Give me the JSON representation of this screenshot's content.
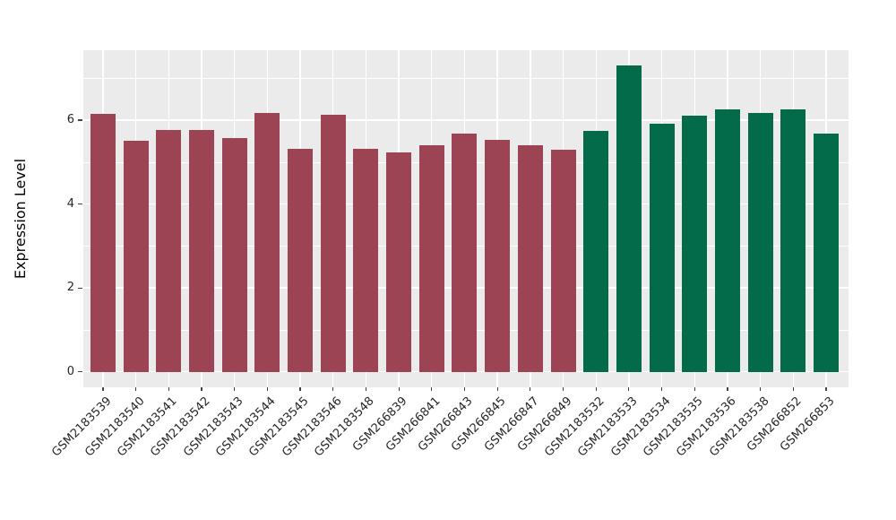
{
  "chart_data": {
    "type": "bar",
    "title": "",
    "xlabel": "",
    "ylabel": "Expression Level",
    "categories": [
      "GSM2183539",
      "GSM2183540",
      "GSM2183541",
      "GSM2183542",
      "GSM2183543",
      "GSM2183544",
      "GSM2183545",
      "GSM2183546",
      "GSM2183548",
      "GSM266839",
      "GSM266841",
      "GSM266843",
      "GSM266845",
      "GSM266847",
      "GSM266849",
      "GSM2183532",
      "GSM2183533",
      "GSM2183534",
      "GSM2183535",
      "GSM2183536",
      "GSM2183538",
      "GSM266852",
      "GSM266853"
    ],
    "values": [
      6.15,
      5.5,
      5.76,
      5.76,
      5.57,
      6.17,
      5.32,
      6.12,
      5.32,
      5.24,
      5.41,
      5.68,
      5.53,
      5.4,
      5.3,
      5.74,
      7.31,
      5.92,
      6.1,
      6.26,
      6.18,
      6.26,
      5.68
    ],
    "bar_groups": [
      0,
      0,
      0,
      0,
      0,
      0,
      0,
      0,
      0,
      0,
      0,
      0,
      0,
      0,
      0,
      1,
      1,
      1,
      1,
      1,
      1,
      1,
      1
    ],
    "group_colors": [
      "#9C4453",
      "#046B4A"
    ],
    "yticks": [
      0,
      2,
      4,
      6
    ],
    "yticks_minor": [
      1,
      3,
      5,
      7
    ],
    "ylim": [
      -0.37,
      7.67
    ],
    "grid": true,
    "legend": "none",
    "panel_bg": "#EBEBEB",
    "grid_color": "#FFFFFF",
    "tick_color": "#444444",
    "text_color": "#262626"
  }
}
